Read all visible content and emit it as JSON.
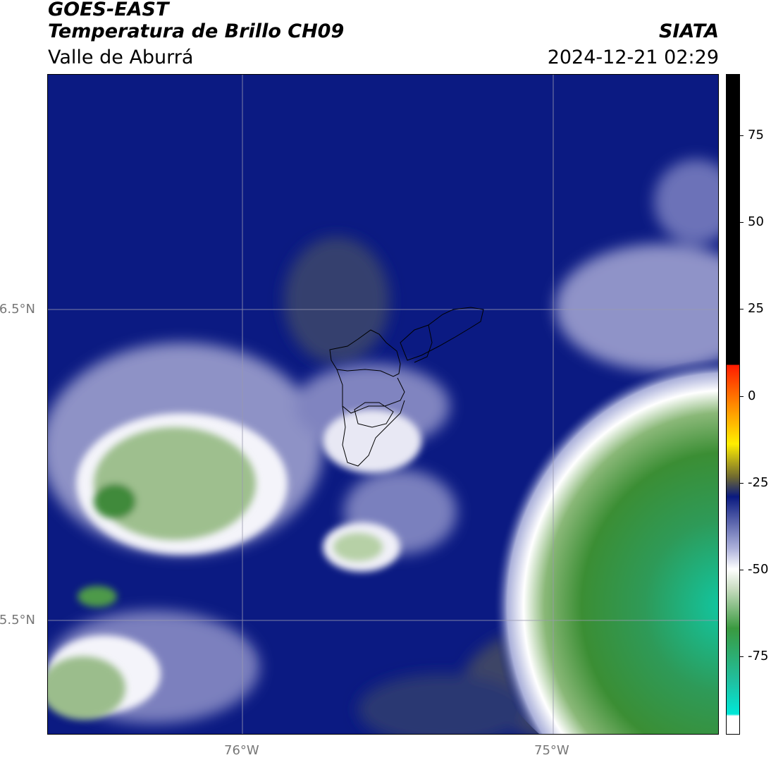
{
  "header": {
    "agency": "GOES-EAST",
    "product": "Temperatura de Brillo CH09",
    "region": "Valle de Aburrá",
    "organization": "SIATA",
    "timestamp": "2024-12-21 02:29"
  },
  "map": {
    "lat_labels": [
      "6.5°N",
      "5.5°N"
    ],
    "lon_labels": [
      "76°W",
      "75°W"
    ]
  },
  "colorbar": {
    "tick_labels": [
      "75",
      "50",
      "25",
      "0",
      "-25",
      "-50",
      "-75"
    ],
    "colors": {
      "cyan": "#00e8d8",
      "teal": "#20c0a0",
      "green": "#3a9a40",
      "light_green": "#c8dcc0",
      "white": "#ffffff",
      "lavender": "#b0b4dc",
      "navy": "#0a1a80",
      "olive": "#706a30",
      "yellow": "#ffee00",
      "orange": "#ff8800",
      "red": "#ff1a00",
      "black": "#000000"
    }
  }
}
